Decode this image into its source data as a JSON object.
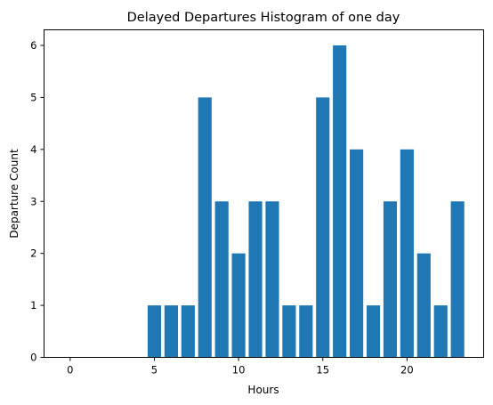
{
  "chart_data": {
    "type": "bar",
    "title": "Delayed Departures Histogram of one day",
    "xlabel": "Hours",
    "ylabel": "Departure Count",
    "x": [
      0,
      1,
      2,
      3,
      4,
      5,
      6,
      7,
      8,
      9,
      10,
      11,
      12,
      13,
      14,
      15,
      16,
      17,
      18,
      19,
      20,
      21,
      22,
      23
    ],
    "values": [
      0,
      0,
      0,
      0,
      0,
      1,
      1,
      1,
      5,
      3,
      2,
      3,
      3,
      1,
      1,
      5,
      6,
      4,
      1,
      3,
      4,
      2,
      1,
      3
    ],
    "xlim": [
      -1.55,
      24.55
    ],
    "ylim": [
      0,
      6.3
    ],
    "xticks": [
      0,
      5,
      10,
      15,
      20
    ],
    "yticks": [
      0,
      1,
      2,
      3,
      4,
      5,
      6
    ],
    "bar_color": "#1f77b4",
    "grid": false,
    "legend": "none"
  }
}
